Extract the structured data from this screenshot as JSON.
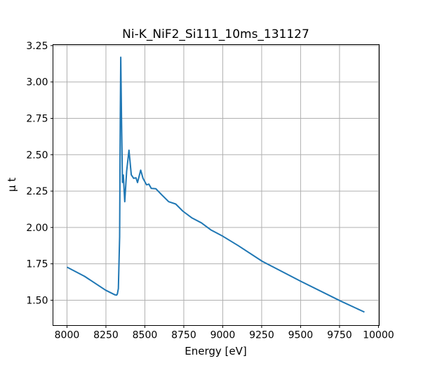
{
  "chart_data": {
    "type": "line",
    "title": "Ni-K_NiF2_Si111_10ms_131127",
    "xlabel": "Energy [eV]",
    "ylabel": "μ t",
    "xlim": [
      7910,
      10005
    ],
    "ylim": [
      1.326,
      3.257
    ],
    "grid": true,
    "xticks": [
      8000,
      8250,
      8500,
      8750,
      9000,
      9250,
      9500,
      9750,
      10000
    ],
    "xtick_labels": [
      "8000",
      "8250",
      "8500",
      "8750",
      "9000",
      "9250",
      "9500",
      "9750",
      "10000"
    ],
    "yticks": [
      1.5,
      1.75,
      2.0,
      2.25,
      2.5,
      2.75,
      3.0,
      3.25
    ],
    "ytick_labels": [
      "1.50",
      "1.75",
      "2.00",
      "2.25",
      "2.50",
      "2.75",
      "3.00",
      "3.25"
    ],
    "series": [
      {
        "name": "mu_t",
        "color": "#1f77b4",
        "x": [
          8000,
          8113,
          8248,
          8308,
          8318,
          8323,
          8330,
          8338,
          8342,
          8345,
          8350,
          8356,
          8362,
          8365,
          8371,
          8383,
          8398,
          8413,
          8428,
          8443,
          8453,
          8473,
          8488,
          8511,
          8526,
          8541,
          8571,
          8608,
          8653,
          8698,
          8743,
          8803,
          8863,
          8923,
          9000,
          9100,
          9254,
          9501,
          9757,
          9910
        ],
        "y": [
          1.727,
          1.664,
          1.569,
          1.537,
          1.535,
          1.542,
          1.58,
          1.936,
          2.74,
          3.17,
          2.74,
          2.31,
          2.36,
          2.29,
          2.177,
          2.387,
          2.531,
          2.362,
          2.338,
          2.341,
          2.309,
          2.394,
          2.338,
          2.293,
          2.298,
          2.269,
          2.266,
          2.225,
          2.177,
          2.161,
          2.113,
          2.065,
          2.032,
          1.984,
          1.94,
          1.875,
          1.767,
          1.63,
          1.494,
          1.418
        ]
      }
    ]
  }
}
